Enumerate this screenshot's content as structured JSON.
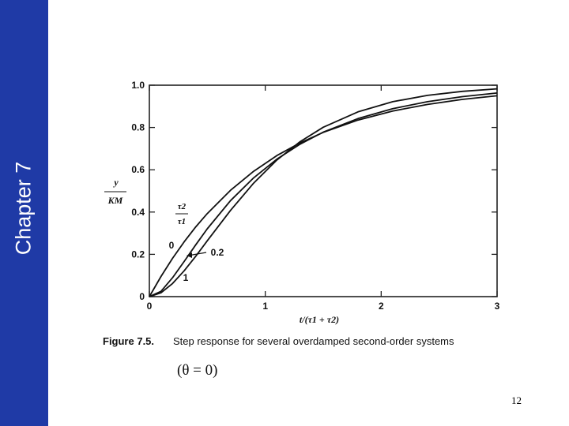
{
  "slide": {
    "sidebar_title": "Chapter 7",
    "page_number": "12",
    "sidebar_color": "#1f3aa6"
  },
  "chart_data": {
    "type": "line",
    "title": "",
    "caption_label": "Figure 7.5.",
    "caption_text": "Step response for several overdamped second-order systems",
    "condition": "(θ = 0)",
    "xlabel": "t/(τ1 + τ2)",
    "ylabel_numerator": "y",
    "ylabel_denominator": "KM",
    "ratio_label_numerator": "τ2",
    "ratio_label_denominator": "τ1",
    "xlim": [
      0,
      3
    ],
    "ylim": [
      0,
      1.0
    ],
    "x_ticks": [
      "0",
      "1",
      "2",
      "3"
    ],
    "y_ticks": [
      "0",
      "0.2",
      "0.4",
      "0.6",
      "0.8",
      "1.0"
    ],
    "x_tick_values": [
      0,
      1,
      2,
      3
    ],
    "y_tick_values": [
      0,
      0.2,
      0.4,
      0.6,
      0.8,
      1.0
    ],
    "grid": false,
    "series": [
      {
        "name": "0",
        "x": [
          0,
          0.1,
          0.2,
          0.3,
          0.4,
          0.5,
          0.7,
          0.9,
          1.1,
          1.3,
          1.5,
          1.8,
          2.1,
          2.4,
          2.7,
          3.0
        ],
        "y": [
          0,
          0.095,
          0.181,
          0.259,
          0.33,
          0.393,
          0.503,
          0.593,
          0.667,
          0.727,
          0.777,
          0.835,
          0.878,
          0.909,
          0.933,
          0.95
        ]
      },
      {
        "name": "0.2",
        "x": [
          0,
          0.1,
          0.2,
          0.3,
          0.4,
          0.5,
          0.7,
          0.9,
          1.1,
          1.3,
          1.5,
          1.8,
          2.1,
          2.4,
          2.7,
          3.0
        ],
        "y": [
          0,
          0.025,
          0.089,
          0.166,
          0.245,
          0.321,
          0.454,
          0.562,
          0.65,
          0.721,
          0.778,
          0.842,
          0.889,
          0.922,
          0.946,
          0.963
        ]
      },
      {
        "name": "1",
        "x": [
          0,
          0.1,
          0.2,
          0.3,
          0.4,
          0.5,
          0.7,
          0.9,
          1.1,
          1.3,
          1.5,
          1.8,
          2.1,
          2.4,
          2.7,
          3.0
        ],
        "y": [
          0,
          0.018,
          0.062,
          0.122,
          0.191,
          0.264,
          0.408,
          0.537,
          0.646,
          0.733,
          0.801,
          0.874,
          0.922,
          0.952,
          0.971,
          0.983
        ]
      }
    ],
    "curve_labels": [
      "0",
      "0.2",
      "1"
    ]
  }
}
